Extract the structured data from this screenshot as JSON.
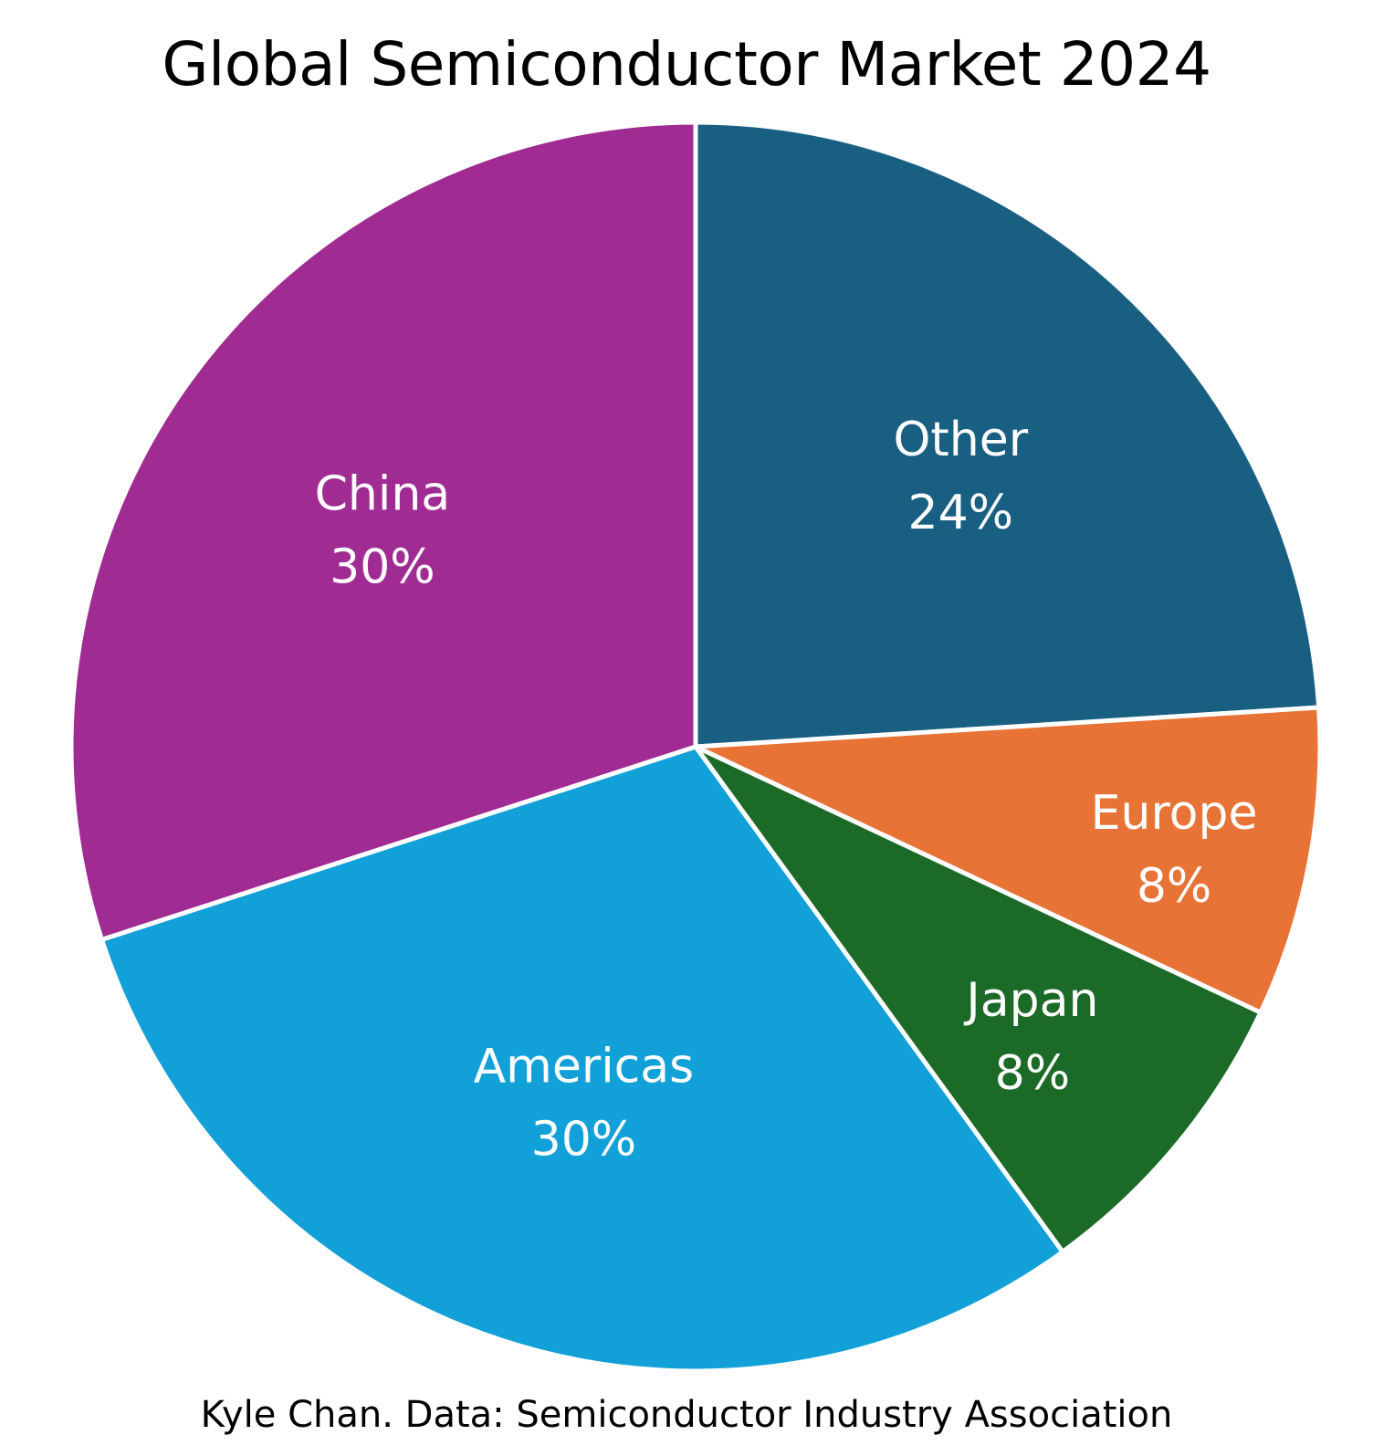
{
  "chart_data": {
    "type": "pie",
    "title": "Global Semiconductor Market 2024",
    "source": "Kyle Chan. Data: Semiconductor Industry Association",
    "slices": [
      {
        "label": "Other",
        "value": 24,
        "display": "24%",
        "color": "#195F82"
      },
      {
        "label": "Europe",
        "value": 8,
        "display": "8%",
        "color": "#E87336"
      },
      {
        "label": "Japan",
        "value": 8,
        "display": "8%",
        "color": "#1C6A27"
      },
      {
        "label": "Americas",
        "value": 30,
        "display": "30%",
        "color": "#11A0D7"
      },
      {
        "label": "China",
        "value": 30,
        "display": "30%",
        "color": "#A02B93"
      }
    ],
    "start": "12 o'clock",
    "direction": "clockwise",
    "legend": "none (labels on slices)"
  }
}
